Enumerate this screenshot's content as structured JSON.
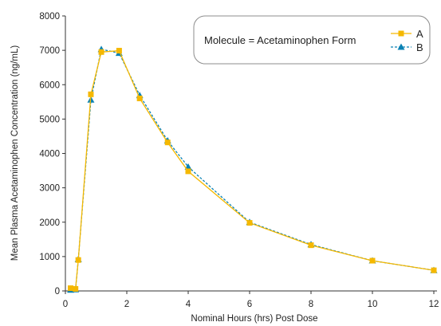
{
  "chart_data": {
    "type": "line",
    "xlabel": "Nominal Hours (hrs) Post Dose",
    "ylabel": "Mean Plasma Acetaminophen Concentration (ng/mL)",
    "xlim": [
      0,
      12
    ],
    "ylim": [
      0,
      8000
    ],
    "xticks": [
      0,
      2,
      4,
      6,
      8,
      10,
      12
    ],
    "yticks": [
      0,
      1000,
      2000,
      3000,
      4000,
      5000,
      6000,
      7000,
      8000
    ],
    "grid": false,
    "legend": {
      "title": "Molecule = Acetaminophen Form",
      "placement": "top-right"
    },
    "series": [
      {
        "name": "A",
        "color": "#f5b800",
        "marker": "square",
        "line_style": "solid",
        "x": [
          0.17,
          0.33,
          0.42,
          0.83,
          1.17,
          1.75,
          2.42,
          3.33,
          4.0,
          6.0,
          8.0,
          10.0,
          12.0
        ],
        "y": [
          80,
          60,
          900,
          5720,
          6950,
          6990,
          5600,
          4320,
          3480,
          1980,
          1330,
          880,
          600
        ]
      },
      {
        "name": "B",
        "color": "#0a82b4",
        "marker": "triangle",
        "line_style": "dashed",
        "x": [
          0.17,
          0.33,
          0.42,
          0.83,
          1.17,
          1.75,
          2.42,
          3.33,
          4.0,
          6.0,
          8.0,
          10.0,
          12.0
        ],
        "y": [
          30,
          40,
          920,
          5560,
          7030,
          6920,
          5690,
          4370,
          3610,
          2000,
          1350,
          880,
          600
        ]
      }
    ]
  }
}
